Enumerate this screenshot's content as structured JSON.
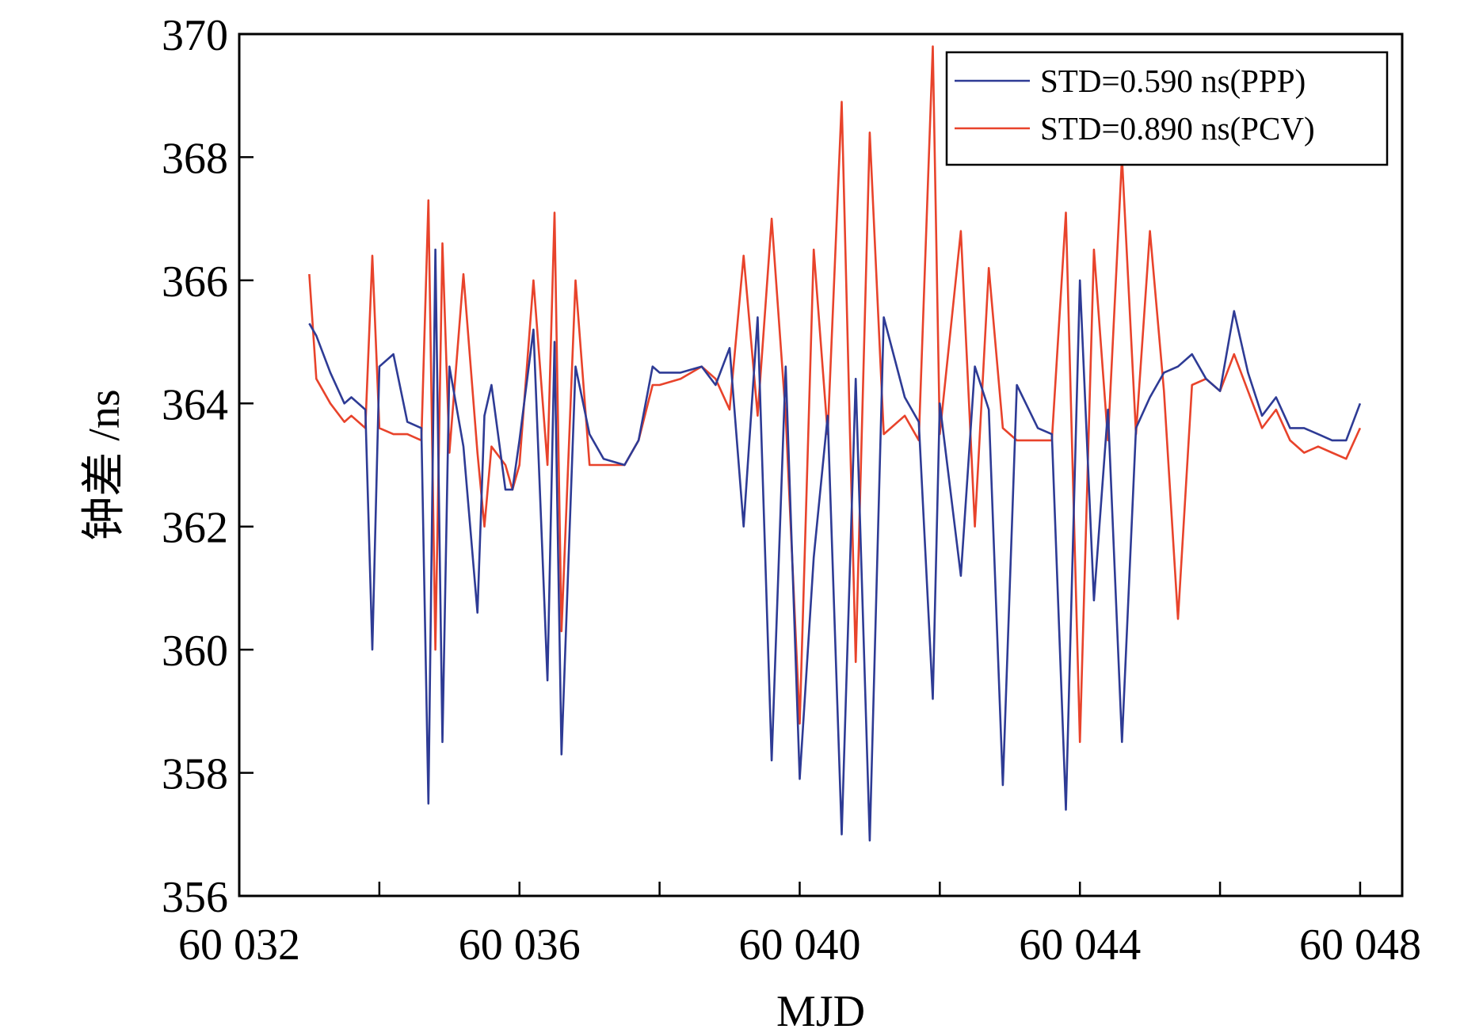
{
  "chart_data": {
    "type": "line",
    "title": "",
    "xlabel": "MJD",
    "ylabel": "钟差 /ns",
    "xlim": [
      60032,
      60048.6
    ],
    "ylim": [
      356,
      370
    ],
    "x_ticks": [
      60032,
      60034,
      60036,
      60038,
      60040,
      60042,
      60044,
      60046,
      60048
    ],
    "x_tick_labels": [
      "60 032",
      "60 036",
      "60 040",
      "60 044",
      "60 048"
    ],
    "x_labeled_ticks": [
      60032,
      60036,
      60040,
      60044,
      60048
    ],
    "y_ticks": [
      356,
      358,
      360,
      362,
      364,
      366,
      368,
      370
    ],
    "y_tick_labels": [
      "356",
      "358",
      "360",
      "362",
      "364",
      "366",
      "368",
      "370"
    ],
    "grid": false,
    "legend_position": "top-right",
    "series": [
      {
        "name": "STD=0.590 ns(PPP)",
        "color": "#2e3b95",
        "x": [
          60033.0,
          60033.1,
          60033.3,
          60033.5,
          60033.6,
          60033.8,
          60033.9,
          60034.0,
          60034.2,
          60034.4,
          60034.6,
          60034.7,
          60034.8,
          60034.9,
          60035.0,
          60035.2,
          60035.4,
          60035.5,
          60035.6,
          60035.8,
          60035.9,
          60036.0,
          60036.2,
          60036.4,
          60036.5,
          60036.6,
          60036.8,
          60037.0,
          60037.2,
          60037.5,
          60037.7,
          60037.9,
          60038.0,
          60038.3,
          60038.6,
          60038.8,
          60039.0,
          60039.2,
          60039.4,
          60039.6,
          60039.8,
          60040.0,
          60040.2,
          60040.4,
          60040.6,
          60040.8,
          60041.0,
          60041.2,
          60041.5,
          60041.7,
          60041.9,
          60042.0,
          60042.3,
          60042.5,
          60042.7,
          60042.9,
          60043.1,
          60043.4,
          60043.6,
          60043.8,
          60044.0,
          60044.2,
          60044.4,
          60044.6,
          60044.8,
          60045.0,
          60045.2,
          60045.4,
          60045.6,
          60045.8,
          60046.0,
          60046.2,
          60046.4,
          60046.6,
          60046.8,
          60047.0,
          60047.2,
          60047.4,
          60047.6,
          60047.8,
          60048.0
        ],
        "values": [
          365.3,
          365.1,
          364.5,
          364.0,
          364.1,
          363.9,
          360.0,
          364.6,
          364.8,
          363.7,
          363.6,
          357.5,
          366.5,
          358.5,
          364.6,
          363.3,
          360.6,
          363.8,
          364.3,
          362.6,
          362.6,
          363.4,
          365.2,
          359.5,
          365.0,
          358.3,
          364.6,
          363.5,
          363.1,
          363.0,
          363.4,
          364.6,
          364.5,
          364.5,
          364.6,
          364.3,
          364.9,
          362.0,
          365.4,
          358.2,
          364.6,
          357.9,
          361.5,
          363.8,
          357.0,
          364.4,
          356.9,
          365.4,
          364.1,
          363.7,
          359.2,
          364.0,
          361.2,
          364.6,
          363.9,
          357.8,
          364.3,
          363.6,
          363.5,
          357.4,
          366.0,
          360.8,
          363.9,
          358.5,
          363.6,
          364.1,
          364.5,
          364.6,
          364.8,
          364.4,
          364.2,
          365.5,
          364.5,
          363.8,
          364.1,
          363.6,
          363.6,
          363.5,
          363.4,
          363.4,
          364.0
        ]
      },
      {
        "name": "STD=0.890 ns(PCV)",
        "color": "#e8432b",
        "x": [
          60033.0,
          60033.1,
          60033.3,
          60033.5,
          60033.6,
          60033.8,
          60033.9,
          60034.0,
          60034.2,
          60034.4,
          60034.6,
          60034.7,
          60034.8,
          60034.9,
          60035.0,
          60035.2,
          60035.4,
          60035.5,
          60035.6,
          60035.8,
          60035.9,
          60036.0,
          60036.2,
          60036.4,
          60036.5,
          60036.6,
          60036.8,
          60037.0,
          60037.2,
          60037.5,
          60037.7,
          60037.9,
          60038.0,
          60038.3,
          60038.6,
          60038.8,
          60039.0,
          60039.2,
          60039.4,
          60039.6,
          60039.8,
          60040.0,
          60040.2,
          60040.4,
          60040.6,
          60040.8,
          60041.0,
          60041.2,
          60041.5,
          60041.7,
          60041.9,
          60042.0,
          60042.3,
          60042.5,
          60042.7,
          60042.9,
          60043.1,
          60043.4,
          60043.6,
          60043.8,
          60044.0,
          60044.2,
          60044.4,
          60044.6,
          60044.8,
          60045.0,
          60045.2,
          60045.4,
          60045.6,
          60045.8,
          60046.0,
          60046.2,
          60046.4,
          60046.6,
          60046.8,
          60047.0,
          60047.2,
          60047.4,
          60047.6,
          60047.8,
          60048.0
        ],
        "values": [
          366.1,
          364.4,
          364.0,
          363.7,
          363.8,
          363.6,
          366.4,
          363.6,
          363.5,
          363.5,
          363.4,
          367.3,
          360.0,
          366.6,
          363.2,
          366.1,
          363.2,
          362.0,
          363.3,
          363.0,
          362.6,
          363.0,
          366.0,
          363.0,
          367.1,
          360.3,
          366.0,
          363.0,
          363.0,
          363.0,
          363.4,
          364.3,
          364.3,
          364.4,
          364.6,
          364.4,
          363.9,
          366.4,
          363.8,
          367.0,
          363.8,
          358.8,
          366.5,
          363.5,
          368.9,
          359.8,
          368.4,
          363.5,
          363.8,
          363.4,
          369.8,
          363.5,
          366.8,
          362.0,
          366.2,
          363.6,
          363.4,
          363.4,
          363.4,
          367.1,
          358.5,
          366.5,
          363.4,
          368.0,
          363.5,
          366.8,
          364.2,
          360.5,
          364.3,
          364.4,
          364.2,
          364.8,
          364.2,
          363.6,
          363.9,
          363.4,
          363.2,
          363.3,
          363.2,
          363.1,
          363.6
        ]
      }
    ]
  }
}
